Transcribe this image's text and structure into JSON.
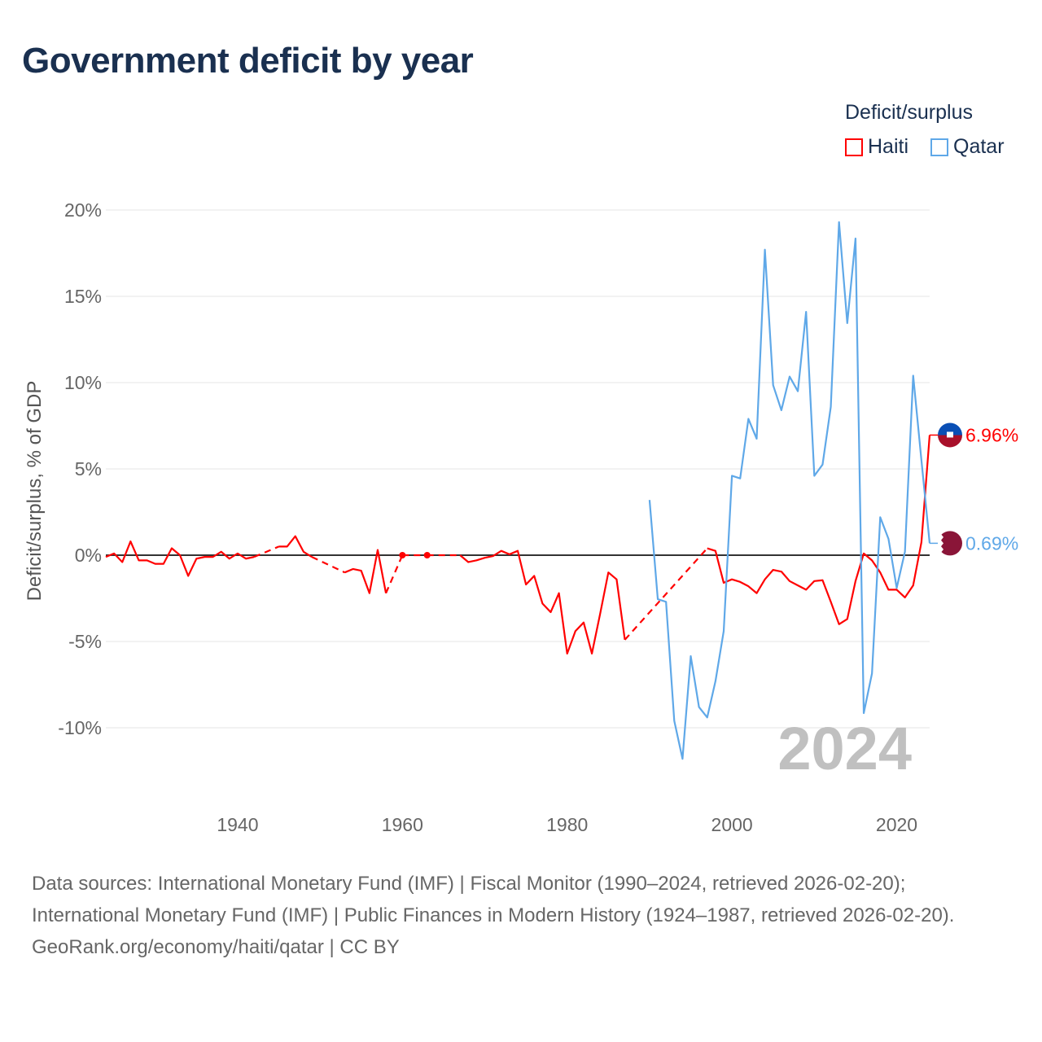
{
  "title": "Government deficit by year",
  "legend": {
    "title": "Deficit/surplus",
    "items": [
      {
        "name": "Haiti",
        "color": "#ff0000"
      },
      {
        "name": "Qatar",
        "color": "#5fa8e8"
      }
    ]
  },
  "year_watermark": "2024",
  "footer": {
    "sources": "Data sources: International Monetary Fund (IMF) | Fiscal Monitor (1990–2024, retrieved 2026-02-20); International Monetary Fund (IMF) | Public Finances in Modern History (1924–1987, retrieved 2026-02-20).",
    "link": "GeoRank.org/economy/haiti/qatar | CC BY"
  },
  "chart_data": {
    "type": "line",
    "title": "Government deficit by year",
    "xlabel": "",
    "ylabel": "Deficit/surplus, % of GDP",
    "xlim": [
      1924,
      2024
    ],
    "ylim": [
      -12.5,
      21
    ],
    "x_ticks": [
      1940,
      1960,
      1980,
      2000,
      2020
    ],
    "y_ticks": [
      {
        "v": 20,
        "label": "20%"
      },
      {
        "v": 15,
        "label": "15%"
      },
      {
        "v": 10,
        "label": "10%"
      },
      {
        "v": 5,
        "label": "5%"
      },
      {
        "v": 0,
        "label": "0%"
      },
      {
        "v": -5,
        "label": "-5%"
      },
      {
        "v": -10,
        "label": "-10%"
      }
    ],
    "grid": true,
    "legend_position": "top-right",
    "series": [
      {
        "name": "Haiti",
        "color": "#ff0000",
        "end_label": "6.96%",
        "points": [
          [
            1924,
            -0.1
          ],
          [
            1925,
            0.1
          ],
          [
            1926,
            -0.4
          ],
          [
            1927,
            0.8
          ],
          [
            1928,
            -0.3
          ],
          [
            1929,
            -0.3
          ],
          [
            1930,
            -0.5
          ],
          [
            1931,
            -0.5
          ],
          [
            1932,
            0.4
          ],
          [
            1933,
            0.0
          ],
          [
            1934,
            -1.2
          ],
          [
            1935,
            -0.2
          ],
          [
            1936,
            -0.1
          ],
          [
            1937,
            -0.1
          ],
          [
            1938,
            0.2
          ],
          [
            1939,
            -0.2
          ],
          [
            1940,
            0.1
          ],
          [
            1941,
            -0.2
          ],
          [
            1942,
            -0.1
          ],
          [
            1945,
            0.5
          ],
          [
            1946,
            0.5
          ],
          [
            1947,
            1.1
          ],
          [
            1948,
            0.2
          ],
          [
            1949,
            -0.1
          ],
          [
            1953,
            -1.0
          ],
          [
            1954,
            -0.8
          ],
          [
            1955,
            -0.9
          ],
          [
            1956,
            -2.2
          ],
          [
            1957,
            0.3
          ],
          [
            1958,
            -2.2
          ],
          [
            1960,
            0.0
          ],
          [
            1963,
            0.0
          ],
          [
            1967,
            0.0
          ],
          [
            1968,
            -0.4
          ],
          [
            1969,
            -0.3
          ],
          [
            1970,
            -0.15
          ],
          [
            1971,
            -0.05
          ],
          [
            1972,
            0.25
          ],
          [
            1973,
            0.05
          ],
          [
            1974,
            0.25
          ],
          [
            1975,
            -1.7
          ],
          [
            1976,
            -1.2
          ],
          [
            1977,
            -2.8
          ],
          [
            1978,
            -3.3
          ],
          [
            1979,
            -2.2
          ],
          [
            1980,
            -5.7
          ],
          [
            1981,
            -4.4
          ],
          [
            1982,
            -3.9
          ],
          [
            1983,
            -5.7
          ],
          [
            1984,
            -3.4
          ],
          [
            1985,
            -1.0
          ],
          [
            1986,
            -1.4
          ],
          [
            1987,
            -4.9
          ],
          [
            1997,
            0.4
          ],
          [
            1998,
            0.25
          ],
          [
            1999,
            -1.6
          ],
          [
            2000,
            -1.4
          ],
          [
            2001,
            -1.55
          ],
          [
            2002,
            -1.8
          ],
          [
            2003,
            -2.2
          ],
          [
            2004,
            -1.4
          ],
          [
            2005,
            -0.85
          ],
          [
            2006,
            -0.95
          ],
          [
            2007,
            -1.5
          ],
          [
            2008,
            -1.75
          ],
          [
            2009,
            -2.0
          ],
          [
            2010,
            -1.5
          ],
          [
            2011,
            -1.45
          ],
          [
            2012,
            -2.7
          ],
          [
            2013,
            -4.0
          ],
          [
            2014,
            -3.7
          ],
          [
            2015,
            -1.5
          ],
          [
            2016,
            0.1
          ],
          [
            2017,
            -0.3
          ],
          [
            2018,
            -1.0
          ],
          [
            2019,
            -2.0
          ],
          [
            2020,
            -2.0
          ],
          [
            2021,
            -2.45
          ],
          [
            2022,
            -1.75
          ],
          [
            2023,
            0.75
          ],
          [
            2024,
            6.96
          ]
        ]
      },
      {
        "name": "Qatar",
        "color": "#5fa8e8",
        "end_label": "0.69%",
        "points": [
          [
            1990,
            3.2
          ],
          [
            1991,
            -2.55
          ],
          [
            1992,
            -2.7
          ],
          [
            1993,
            -9.6
          ],
          [
            1994,
            -11.8
          ],
          [
            1995,
            -5.85
          ],
          [
            1996,
            -8.8
          ],
          [
            1997,
            -9.4
          ],
          [
            1998,
            -7.3
          ],
          [
            1999,
            -4.4
          ],
          [
            2000,
            4.6
          ],
          [
            2001,
            4.45
          ],
          [
            2002,
            7.9
          ],
          [
            2003,
            6.75
          ],
          [
            2004,
            17.7
          ],
          [
            2005,
            9.85
          ],
          [
            2006,
            8.4
          ],
          [
            2007,
            10.35
          ],
          [
            2008,
            9.5
          ],
          [
            2009,
            14.1
          ],
          [
            2010,
            4.6
          ],
          [
            2011,
            5.25
          ],
          [
            2012,
            8.6
          ],
          [
            2013,
            19.3
          ],
          [
            2014,
            13.45
          ],
          [
            2015,
            18.35
          ],
          [
            2016,
            -9.15
          ],
          [
            2017,
            -6.85
          ],
          [
            2018,
            2.2
          ],
          [
            2019,
            0.95
          ],
          [
            2020,
            -1.9
          ],
          [
            2021,
            0.2
          ],
          [
            2022,
            10.4
          ],
          [
            2023,
            5.5
          ],
          [
            2024,
            0.69
          ]
        ]
      }
    ]
  }
}
